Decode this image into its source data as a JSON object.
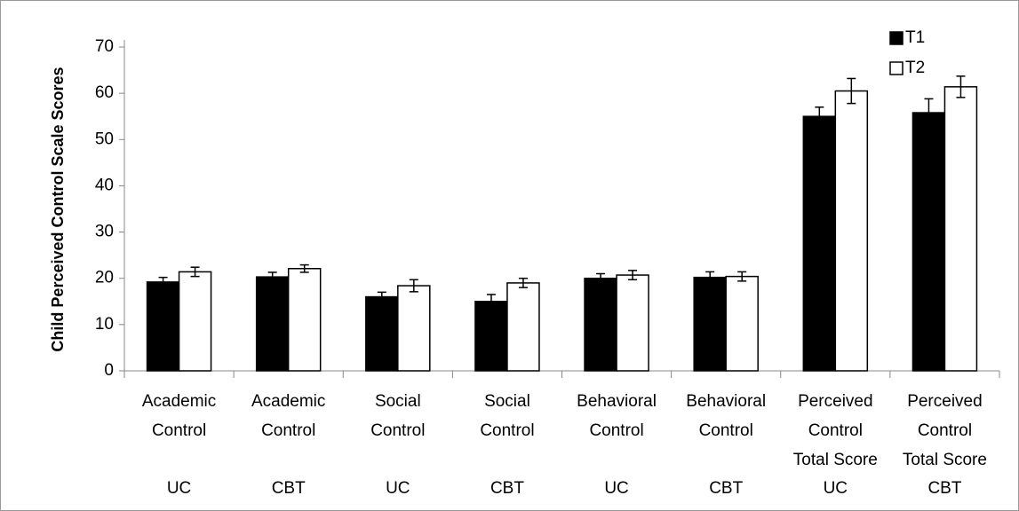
{
  "chart_data": {
    "type": "bar",
    "y_axis_label": "Child Perceived Control Scale Scores",
    "categories": [
      [
        "Academic",
        "Control"
      ],
      [
        "Academic",
        "Control"
      ],
      [
        "Social",
        "Control"
      ],
      [
        "Social",
        "Control"
      ],
      [
        "Behavioral",
        "Control"
      ],
      [
        "Behavioral",
        "Control"
      ],
      [
        "Perceived",
        "Control",
        "Total Score"
      ],
      [
        "Perceived",
        "Control",
        "Total Score"
      ]
    ],
    "groups": [
      "UC",
      "CBT",
      "UC",
      "CBT",
      "UC",
      "CBT",
      "UC",
      "CBT"
    ],
    "series": [
      {
        "name": "T1",
        "color": "#000000",
        "values": [
          19.2,
          20.3,
          16,
          15,
          20,
          20.2,
          55,
          55.8
        ],
        "errors": [
          1,
          1,
          1,
          1.5,
          1,
          1.2,
          2,
          3
        ]
      },
      {
        "name": "T2",
        "color": "#ffffff",
        "values": [
          21.4,
          22.1,
          18.4,
          19,
          20.7,
          20.4,
          60.5,
          61.4
        ],
        "errors": [
          1,
          0.8,
          1.3,
          1,
          1,
          1,
          2.7,
          2.3
        ]
      }
    ],
    "ylim": [
      0,
      70
    ],
    "yticks": [
      0,
      10,
      20,
      30,
      40,
      50,
      60,
      70
    ],
    "legend": "top-right"
  }
}
